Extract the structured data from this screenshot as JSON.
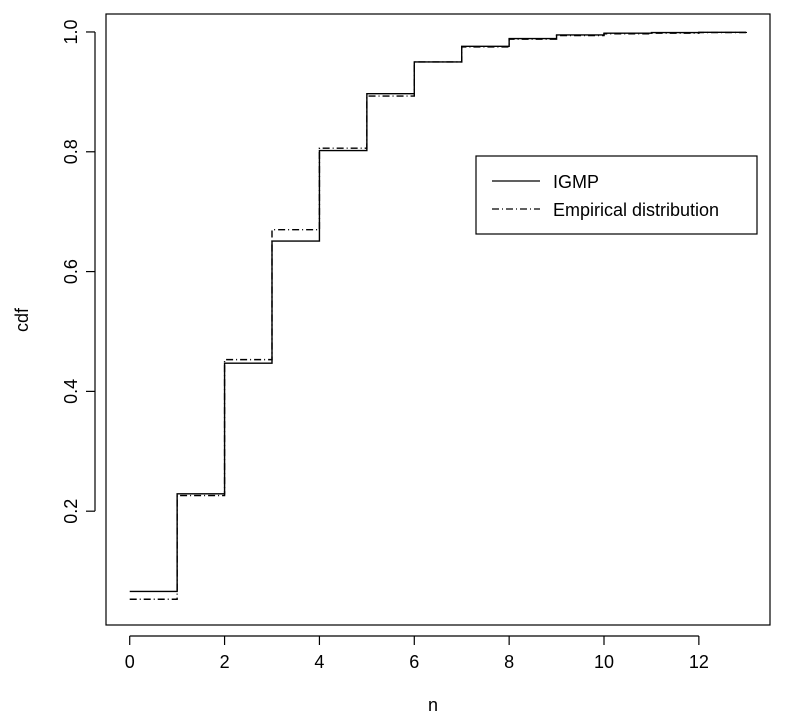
{
  "chart_data": {
    "type": "line",
    "step": true,
    "xlabel": "n",
    "ylabel": "cdf",
    "xlim": [
      -0.5,
      13.5
    ],
    "ylim": [
      0.01,
      1.03
    ],
    "x_ticks": [
      0,
      2,
      4,
      6,
      8,
      10,
      12
    ],
    "x_tick_labels": [
      "0",
      "2",
      "4",
      "6",
      "8",
      "10",
      "12"
    ],
    "y_ticks": [
      0.2,
      0.4,
      0.6,
      0.8,
      1.0
    ],
    "y_tick_labels": [
      "0.2",
      "0.4",
      "0.6",
      "0.8",
      "1.0"
    ],
    "grid": false,
    "legend_position": "right",
    "x": [
      0,
      1,
      2,
      3,
      4,
      5,
      6,
      7,
      8,
      9,
      10,
      11,
      12,
      13
    ],
    "series": [
      {
        "name": "IGMP",
        "line_style": "solid",
        "color": "#000000",
        "values": [
          0.066,
          0.229,
          0.447,
          0.651,
          0.802,
          0.897,
          0.95,
          0.976,
          0.989,
          0.995,
          0.998,
          0.999,
          0.9995,
          1.0
        ]
      },
      {
        "name": "Empirical distribution",
        "line_style": "dot-dash",
        "color": "#000000",
        "values": [
          0.053,
          0.226,
          0.453,
          0.67,
          0.806,
          0.893,
          0.95,
          0.975,
          0.988,
          0.994,
          0.997,
          0.998,
          0.999,
          1.0
        ]
      }
    ]
  }
}
